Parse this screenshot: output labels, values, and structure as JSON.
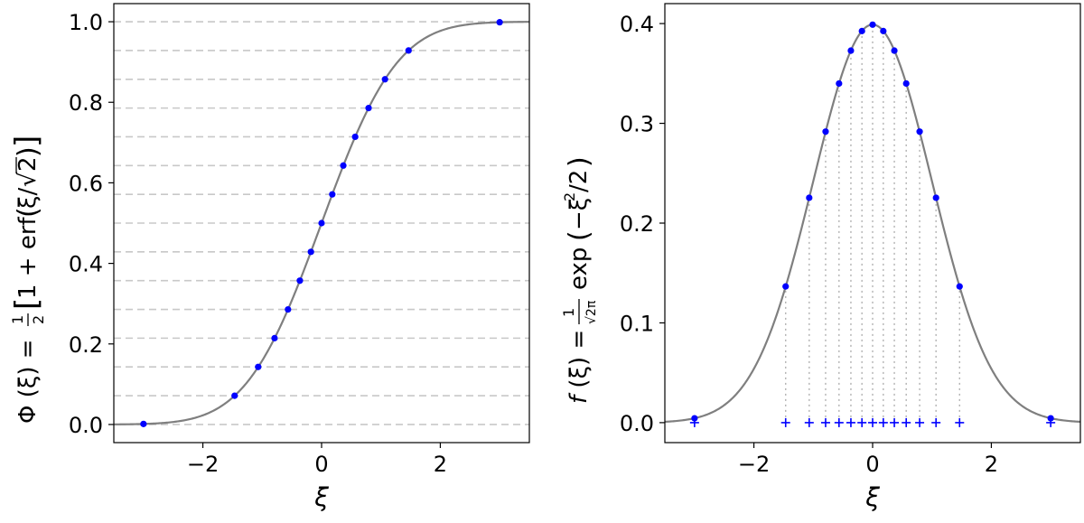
{
  "chart_data": [
    {
      "type": "line",
      "panel": "left",
      "xlabel": "ξ",
      "ylabel": "Φ (ξ) = ½[1 + erf(ξ/√2)]",
      "xlim": [
        -3.5,
        3.5
      ],
      "ylim": [
        -0.045,
        1.045
      ],
      "xticks": [
        -2,
        0,
        2
      ],
      "xtick_labels": [
        "−2",
        "0",
        "2"
      ],
      "yticks": [
        0.0,
        0.2,
        0.4,
        0.6,
        0.8,
        1.0
      ],
      "ytick_labels": [
        "0.0",
        "0.2",
        "0.4",
        "0.6",
        "0.8",
        "1.0"
      ],
      "hlines": [
        0.0,
        0.0714,
        0.1429,
        0.2143,
        0.2857,
        0.3571,
        0.4286,
        0.5,
        0.5714,
        0.6429,
        0.7143,
        0.7857,
        0.8571,
        0.9286,
        1.0
      ],
      "series": [
        {
          "style": "curve",
          "function": "normal_cdf",
          "color": "#7f7f7f"
        },
        {
          "style": "points",
          "color": "#0000ff",
          "x": [
            -3.0,
            -1.465,
            -1.068,
            -0.792,
            -0.566,
            -0.366,
            -0.18,
            0.0,
            0.18,
            0.366,
            0.566,
            0.792,
            1.068,
            1.465,
            3.0
          ],
          "y": [
            0.0013,
            0.0714,
            0.1429,
            0.2143,
            0.2857,
            0.3571,
            0.4286,
            0.5,
            0.5714,
            0.6429,
            0.7143,
            0.7857,
            0.8571,
            0.9286,
            0.9987
          ]
        }
      ],
      "grid": false
    },
    {
      "type": "line",
      "panel": "right",
      "xlabel": "ξ",
      "ylabel": "f (ξ) = (1/√(2π)) exp (−ξ²/2)",
      "xlim": [
        -3.5,
        3.5
      ],
      "ylim": [
        -0.02,
        0.42
      ],
      "xticks": [
        -2,
        0,
        2
      ],
      "xtick_labels": [
        "−2",
        "0",
        "2"
      ],
      "yticks": [
        0.0,
        0.1,
        0.2,
        0.3,
        0.4
      ],
      "ytick_labels": [
        "0.0",
        "0.1",
        "0.2",
        "0.3",
        "0.4"
      ],
      "series": [
        {
          "style": "curve",
          "function": "normal_pdf",
          "color": "#7f7f7f"
        },
        {
          "style": "points",
          "color": "#0000ff",
          "x": [
            -3.0,
            -1.465,
            -1.068,
            -0.792,
            -0.566,
            -0.366,
            -0.18,
            0.0,
            0.18,
            0.366,
            0.566,
            0.792,
            1.068,
            1.465,
            3.0
          ],
          "y": [
            0.0044,
            0.1365,
            0.2254,
            0.2917,
            0.3399,
            0.3729,
            0.3925,
            0.3989,
            0.3925,
            0.3729,
            0.3399,
            0.2917,
            0.2254,
            0.1365,
            0.0044
          ]
        },
        {
          "style": "markers",
          "marker": "+",
          "color": "#0000ff",
          "x": [
            -3.0,
            -1.465,
            -1.068,
            -0.792,
            -0.566,
            -0.366,
            -0.18,
            0.0,
            0.18,
            0.366,
            0.566,
            0.792,
            1.068,
            1.465,
            3.0
          ],
          "y": [
            0,
            0,
            0,
            0,
            0,
            0,
            0,
            0,
            0,
            0,
            0,
            0,
            0,
            0,
            0
          ]
        }
      ],
      "vlines_dotted": [
        -1.465,
        -1.068,
        -0.792,
        -0.566,
        -0.366,
        -0.18,
        0.0,
        0.18,
        0.366,
        0.566,
        0.792,
        1.068,
        1.465
      ],
      "grid": false
    }
  ]
}
